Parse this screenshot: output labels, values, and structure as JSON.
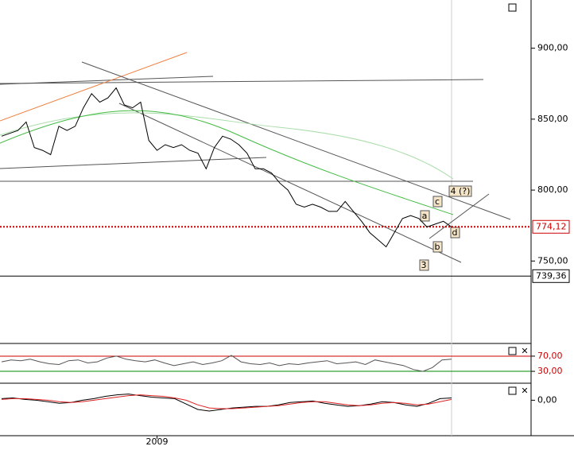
{
  "chart_data": [
    {
      "type": "line",
      "categories": [
        null,
        null,
        null,
        null,
        null,
        null,
        null,
        null,
        null,
        null,
        null,
        null,
        null,
        null,
        null,
        null,
        null,
        null,
        null,
        "2009",
        null,
        null,
        null,
        null,
        null,
        null,
        null,
        null,
        null,
        null,
        null,
        null,
        null,
        null,
        null,
        null,
        null,
        null,
        null,
        null,
        null,
        null,
        null,
        null,
        null,
        null,
        null,
        null,
        null,
        null,
        null,
        null,
        null,
        null,
        null,
        null
      ],
      "series": [
        {
          "color": "#000000",
          "values": [
            838,
            840,
            842,
            848,
            830,
            828,
            825,
            845,
            842,
            845,
            858,
            868,
            862,
            865,
            872,
            860,
            858,
            862,
            835,
            828,
            832,
            830,
            832,
            828,
            826,
            815,
            830,
            838,
            836,
            832,
            826,
            815,
            815,
            812,
            805,
            800,
            790,
            788,
            790,
            788,
            785,
            785,
            792,
            785,
            778,
            770,
            765,
            760,
            770,
            780,
            782,
            780,
            774,
            776,
            778,
            774
          ]
        }
      ],
      "ylim": [
        693,
        934
      ],
      "yticks": [
        {
          "value": 750,
          "label": "750,00"
        },
        {
          "value": 800,
          "label": "800,00"
        },
        {
          "value": 850,
          "label": "850,00"
        },
        {
          "value": 900,
          "label": "900,00"
        }
      ],
      "reference_lines": [
        {
          "value": 774.12,
          "label": "774,12",
          "color": "#cc0000"
        },
        {
          "value": 739.36,
          "label": "739,36",
          "color": "#000000"
        }
      ],
      "annotations": [
        "a",
        "b",
        "c",
        "d",
        "3",
        "4 (?)"
      ]
    },
    {
      "type": "line",
      "series": [
        {
          "color": "#555555",
          "values": [
            55,
            60,
            58,
            62,
            55,
            50,
            48,
            58,
            60,
            52,
            55,
            65,
            70,
            62,
            58,
            55,
            60,
            52,
            45,
            50,
            55,
            48,
            52,
            58,
            72,
            55,
            50,
            48,
            52,
            45,
            50,
            48,
            52,
            55,
            58,
            50,
            52,
            55,
            48,
            60,
            55,
            50,
            45,
            35,
            30,
            40,
            60,
            62
          ]
        }
      ],
      "ylim": [
        5,
        95
      ],
      "yticks": [
        {
          "value": 30,
          "label": "30,00"
        },
        {
          "value": 70,
          "label": "70,00"
        }
      ]
    },
    {
      "type": "line",
      "series": [
        {
          "color": "#000000",
          "values": [
            2,
            3,
            1,
            0,
            -2,
            -4,
            -3,
            0,
            2,
            5,
            7,
            8,
            6,
            4,
            3,
            2,
            -5,
            -12,
            -14,
            -12,
            -10,
            -9,
            -8,
            -8,
            -6,
            -3,
            -2,
            -1,
            -4,
            -6,
            -8,
            -7,
            -5,
            -2,
            -3,
            -6,
            -8,
            -4,
            2,
            3
          ]
        },
        {
          "color": "#dd2222",
          "values": [
            1,
            2,
            2,
            1,
            0,
            -2,
            -3,
            -2,
            0,
            2,
            4,
            6,
            7,
            6,
            5,
            3,
            0,
            -6,
            -10,
            -11,
            -11,
            -10,
            -9,
            -8,
            -7,
            -5,
            -3,
            -2,
            -2,
            -4,
            -6,
            -7,
            -6,
            -4,
            -3,
            -4,
            -6,
            -5,
            -2,
            1
          ]
        }
      ],
      "ylim": [
        -45,
        20
      ],
      "yticks": [
        {
          "value": 0,
          "label": "0,00"
        }
      ]
    }
  ]
}
